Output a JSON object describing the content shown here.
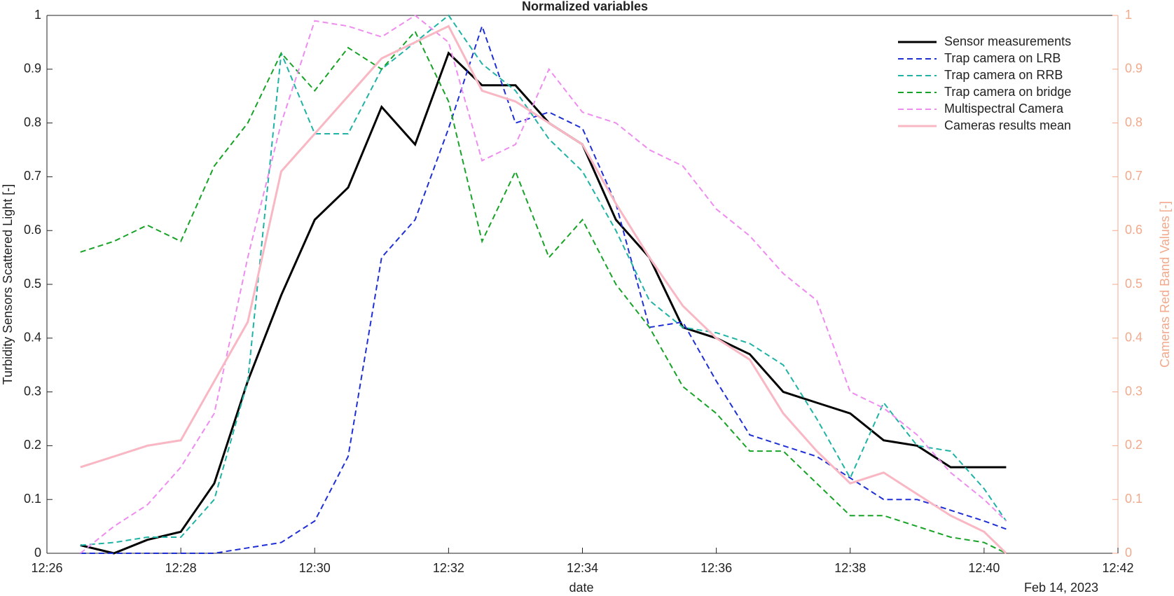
{
  "chart_data": {
    "type": "line",
    "title": "Normalized variables",
    "y_label": "Turbidity Sensors Scattered Light [-]",
    "y2_label": "Cameras Red Band Values [-]",
    "x_label": "date",
    "x_secondary_label": "Feb 14, 2023",
    "x": [
      746.5,
      747,
      747.5,
      748,
      748.5,
      749,
      749.5,
      750,
      750.5,
      751,
      751.5,
      752,
      752.5,
      753,
      753.5,
      754,
      754.5,
      755,
      755.5,
      756,
      756.5,
      757,
      757.5,
      758,
      758.5,
      759,
      759.5,
      760,
      760.33
    ],
    "xlim": [
      746,
      762
    ],
    "xticks": [
      {
        "value": 746,
        "label": "12:26"
      },
      {
        "value": 748,
        "label": "12:28"
      },
      {
        "value": 750,
        "label": "12:30"
      },
      {
        "value": 752,
        "label": "12:32"
      },
      {
        "value": 754,
        "label": "12:34"
      },
      {
        "value": 756,
        "label": "12:36"
      },
      {
        "value": 758,
        "label": "12:38"
      },
      {
        "value": 760,
        "label": "12:40"
      },
      {
        "value": 762,
        "label": "12:42"
      }
    ],
    "ylim": [
      0,
      1
    ],
    "yticks": [
      0,
      0.1,
      0.2,
      0.3,
      0.4,
      0.5,
      0.6,
      0.7,
      0.8,
      0.9,
      1
    ],
    "y2lim": [
      0,
      1
    ],
    "y2ticks": [
      0,
      0.1,
      0.2,
      0.3,
      0.4,
      0.5,
      0.6,
      0.7,
      0.8,
      0.9,
      1
    ],
    "y2_color": "#f2a98c",
    "legend": "upper right",
    "series": [
      {
        "name": "Sensor measurements",
        "color": "#000000",
        "dash": false,
        "values": [
          0.015,
          0.0,
          0.025,
          0.04,
          0.13,
          0.32,
          0.48,
          0.62,
          0.68,
          0.83,
          0.76,
          0.93,
          0.87,
          0.87,
          0.8,
          0.76,
          0.62,
          0.55,
          0.42,
          0.4,
          0.37,
          0.3,
          0.28,
          0.26,
          0.21,
          0.2,
          0.16,
          0.16,
          0.16
        ]
      },
      {
        "name": "Trap camera on LRB",
        "color": "#1f2fd6",
        "dash": true,
        "axis": "y2",
        "values": [
          0.0,
          0.0,
          0.0,
          0.0,
          0.0,
          0.01,
          0.02,
          0.06,
          0.18,
          0.55,
          0.62,
          0.79,
          0.98,
          0.8,
          0.82,
          0.79,
          0.65,
          0.42,
          0.43,
          0.32,
          0.22,
          0.2,
          0.18,
          0.14,
          0.1,
          0.1,
          0.08,
          0.06,
          0.045
        ]
      },
      {
        "name": "Trap camera on RRB",
        "color": "#1fb3a6",
        "dash": true,
        "axis": "y2",
        "values": [
          0.015,
          0.02,
          0.03,
          0.03,
          0.1,
          0.32,
          0.93,
          0.78,
          0.78,
          0.9,
          0.95,
          1.0,
          0.91,
          0.86,
          0.77,
          0.71,
          0.6,
          0.47,
          0.42,
          0.41,
          0.39,
          0.35,
          0.25,
          0.14,
          0.28,
          0.2,
          0.19,
          0.12,
          0.06
        ]
      },
      {
        "name": "Trap camera on bridge",
        "color": "#17a327",
        "dash": true,
        "axis": "y2",
        "values": [
          0.56,
          0.58,
          0.61,
          0.58,
          0.72,
          0.8,
          0.93,
          0.86,
          0.94,
          0.9,
          0.97,
          0.84,
          0.58,
          0.71,
          0.55,
          0.62,
          0.5,
          0.42,
          0.31,
          0.26,
          0.19,
          0.19,
          0.13,
          0.07,
          0.07,
          0.05,
          0.03,
          0.02,
          0.0
        ]
      },
      {
        "name": "Multispectral Camera",
        "color": "#ee8cef",
        "dash": true,
        "axis": "y2",
        "values": [
          0.0,
          0.05,
          0.09,
          0.16,
          0.26,
          0.55,
          0.8,
          0.99,
          0.98,
          0.96,
          1.0,
          0.95,
          0.73,
          0.76,
          0.9,
          0.82,
          0.8,
          0.75,
          0.72,
          0.64,
          0.59,
          0.52,
          0.47,
          0.3,
          0.27,
          0.22,
          0.15,
          0.1,
          0.06
        ]
      },
      {
        "name": "Cameras results mean",
        "color": "#f8b7c3",
        "dash": false,
        "axis": "y2",
        "values": [
          0.16,
          0.18,
          0.2,
          0.21,
          0.32,
          0.43,
          0.71,
          0.78,
          0.85,
          0.92,
          0.95,
          0.98,
          0.86,
          0.84,
          0.8,
          0.76,
          0.65,
          0.55,
          0.46,
          0.4,
          0.36,
          0.26,
          0.19,
          0.13,
          0.15,
          0.11,
          0.07,
          0.04,
          0.0
        ]
      }
    ]
  }
}
